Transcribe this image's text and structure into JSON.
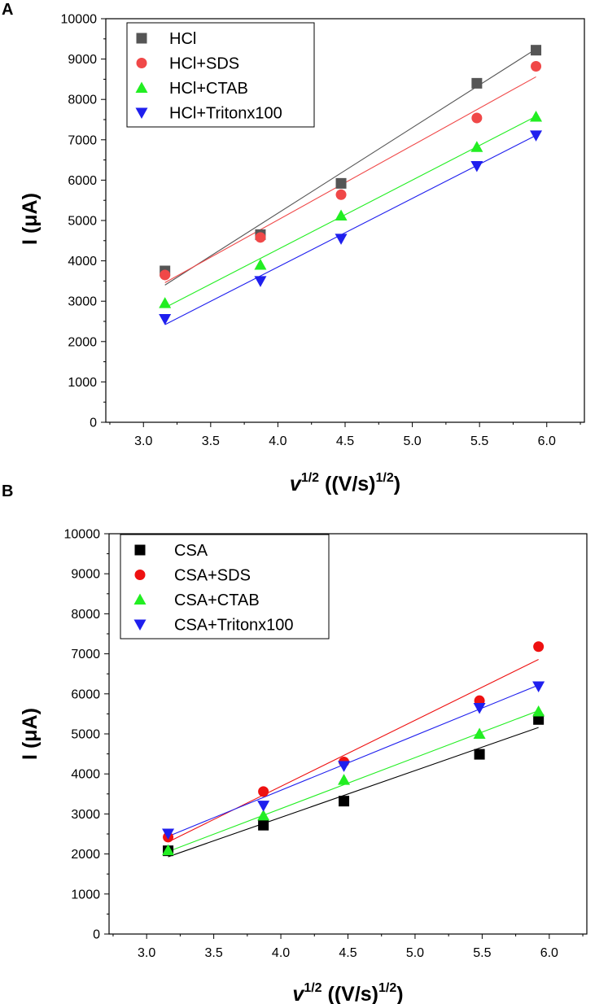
{
  "chart_data": [
    {
      "type": "scatter",
      "panel_label": "A",
      "xlabel": {
        "var": "v",
        "var_sup": "1/2",
        "unit": " ((V/s)",
        "unit_sup": "1/2",
        "close": ")"
      },
      "ylabel": "I (μA)",
      "xlim": [
        2.72,
        6.28
      ],
      "ylim": [
        0,
        10000
      ],
      "xticks": [
        3.0,
        3.5,
        4.0,
        4.5,
        5.0,
        5.5,
        6.0
      ],
      "xtick_labels": [
        "3.0",
        "3.5",
        "4.0",
        "4.5",
        "5.0",
        "5.5",
        "6.0"
      ],
      "yticks": [
        0,
        1000,
        2000,
        3000,
        4000,
        5000,
        6000,
        7000,
        8000,
        9000,
        10000
      ],
      "ytick_labels": [
        "0",
        "1000",
        "2000",
        "3000",
        "4000",
        "5000",
        "6000",
        "7000",
        "8000",
        "9000",
        "10000"
      ],
      "grid": false,
      "legend_position": "top-left",
      "x": [
        3.16,
        3.87,
        4.47,
        5.48,
        5.92
      ],
      "series": [
        {
          "name": "HCl",
          "marker": "square",
          "color": "#555555",
          "values": [
            3750,
            4650,
            5920,
            8400,
            9220
          ],
          "fit": [
            3400,
            9250
          ]
        },
        {
          "name": "HCl+SDS",
          "marker": "circle",
          "color": "#f04848",
          "values": [
            3650,
            4580,
            5640,
            7540,
            8820
          ],
          "fit": [
            3460,
            8560
          ]
        },
        {
          "name": "HCl+CTAB",
          "marker": "triangle-up",
          "color": "#22ee22",
          "values": [
            2950,
            3900,
            5120,
            6820,
            7570
          ],
          "fit": [
            2840,
            7580
          ]
        },
        {
          "name": "HCl+Tritonx100",
          "marker": "triangle-down",
          "color": "#1f1fee",
          "values": [
            2560,
            3500,
            4550,
            6350,
            7110
          ],
          "fit": [
            2420,
            7110
          ]
        }
      ]
    },
    {
      "type": "scatter",
      "panel_label": "B",
      "xlabel": {
        "var": "v",
        "var_sup": "1/2",
        "unit": " ((V/s)",
        "unit_sup": "1/2",
        "close": ")"
      },
      "ylabel": "I (μA)",
      "xlim": [
        2.72,
        6.28
      ],
      "ylim": [
        0,
        10000
      ],
      "xticks": [
        3.0,
        3.5,
        4.0,
        4.5,
        5.0,
        5.5,
        6.0
      ],
      "xtick_labels": [
        "3.0",
        "3.5",
        "4.0",
        "4.5",
        "5.0",
        "5.5",
        "6.0"
      ],
      "yticks": [
        0,
        1000,
        2000,
        3000,
        4000,
        5000,
        6000,
        7000,
        8000,
        9000,
        10000
      ],
      "ytick_labels": [
        "0",
        "1000",
        "2000",
        "3000",
        "4000",
        "5000",
        "6000",
        "7000",
        "8000",
        "9000",
        "10000"
      ],
      "grid": false,
      "legend_position": "top-left",
      "x": [
        3.16,
        3.87,
        4.47,
        5.48,
        5.92
      ],
      "series": [
        {
          "name": "CSA",
          "marker": "square",
          "color": "#000000",
          "values": [
            2080,
            2720,
            3320,
            4490,
            5360
          ],
          "fit": [
            1930,
            5160
          ]
        },
        {
          "name": "CSA+SDS",
          "marker": "circle",
          "color": "#ee1111",
          "values": [
            2420,
            3560,
            4300,
            5830,
            7180
          ],
          "fit": [
            2300,
            6860
          ]
        },
        {
          "name": "CSA+CTAB",
          "marker": "triangle-up",
          "color": "#22ee22",
          "values": [
            2090,
            2960,
            3850,
            5000,
            5560
          ],
          "fit": [
            2060,
            5580
          ]
        },
        {
          "name": "CSA+Tritonx100",
          "marker": "triangle-down",
          "color": "#1f1fee",
          "values": [
            2510,
            3210,
            4200,
            5650,
            6190
          ],
          "fit": [
            2440,
            6220
          ]
        }
      ]
    }
  ]
}
